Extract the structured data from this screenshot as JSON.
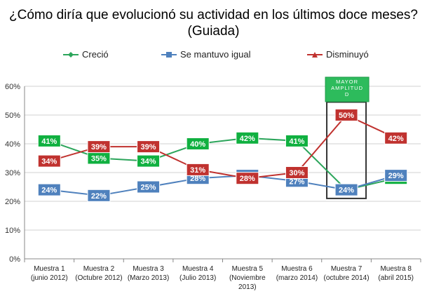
{
  "title": {
    "line1": "¿Cómo diría que evolucionó su actividad en los últimos doce meses?",
    "line2": "(Guiada)"
  },
  "colors": {
    "crecio": "#2ca55b",
    "crecio_label": "#10b040",
    "igual": "#4f81bd",
    "disminuyo": "#c0322f",
    "grid": "#d0d0d0",
    "axis": "#888888"
  },
  "annotation": {
    "text_line1": "MAYOR",
    "text_line2": "AMPLITUD",
    "text_line3": "D",
    "box_category_index": 6
  },
  "chart_data": {
    "type": "line",
    "categories": [
      [
        "Muestra 1",
        "(junio 2012)"
      ],
      [
        "Muestra 2",
        "(Octubre 2012)"
      ],
      [
        "Muestra 3",
        "(Marzo 2013)"
      ],
      [
        "Muestra 4",
        "(Julio 2013)"
      ],
      [
        "Muestra 5",
        "(Noviembre",
        "2013)"
      ],
      [
        "Muestra 6",
        "(marzo 2014)"
      ],
      [
        "Muestra 7",
        "(octubre 2014)"
      ],
      [
        "Muestra 8",
        "(abril 2015)"
      ]
    ],
    "series": [
      {
        "name": "Creció",
        "values": [
          41,
          35,
          34,
          40,
          42,
          41,
          24,
          28
        ]
      },
      {
        "name": "Se mantuvo igual",
        "values": [
          24,
          22,
          25,
          28,
          29,
          27,
          24,
          29
        ]
      },
      {
        "name": "Disminuyó",
        "values": [
          34,
          39,
          39,
          31,
          28,
          30,
          50,
          42
        ]
      }
    ],
    "ylim": [
      0,
      60
    ],
    "yticks": [
      "0%",
      "10%",
      "20%",
      "30%",
      "40%",
      "50%",
      "60%"
    ],
    "legend_position": "top",
    "grid": true
  }
}
